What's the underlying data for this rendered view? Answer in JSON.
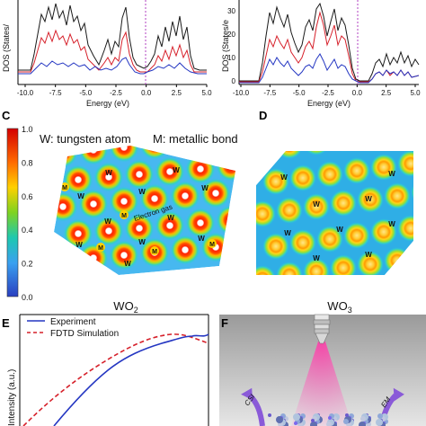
{
  "panels": {
    "a": {
      "ylabel": "DOS (States/",
      "xlabel": "Energy (eV)",
      "xticks": [
        "-10.0",
        "-7.5",
        "-5.0",
        "-2.5",
        "0.0",
        "2.5",
        "5.0"
      ]
    },
    "b": {
      "ylabel": "DOS (States/e",
      "xlabel": "Energy (eV)",
      "xticks": [
        "-10.0",
        "-7.5",
        "-5.0",
        "-2.5",
        "0.0",
        "2.5",
        "5.0"
      ],
      "yticks": [
        "0",
        "10",
        "20",
        "30"
      ]
    },
    "c": {
      "letter": "C",
      "legend_w": "W: tungsten atom",
      "legend_m": "M: metallic bond",
      "colorbar_ticks": [
        "1.0",
        "0.8",
        "0.6",
        "0.4",
        "0.2",
        "0.0"
      ],
      "atom_label": "W",
      "bond_label": "M",
      "gas_label": "Electron gas",
      "caption": "WO",
      "caption_sub": "2"
    },
    "d": {
      "letter": "D",
      "atom_label": "W",
      "caption": "WO",
      "caption_sub": "3"
    },
    "e": {
      "letter": "E",
      "legend_experiment": "Experiment",
      "legend_fdtd": "FDTD Simulation",
      "ylabel": "Intensity (a.u.)"
    },
    "f": {
      "letter": "F",
      "left_arrow_label": "CSI",
      "right_arrow_label": "EM"
    }
  },
  "colors": {
    "total": "#1a1a1a",
    "red": "#d6202a",
    "blue": "#2436c2",
    "fermi": "#b040c0"
  }
}
